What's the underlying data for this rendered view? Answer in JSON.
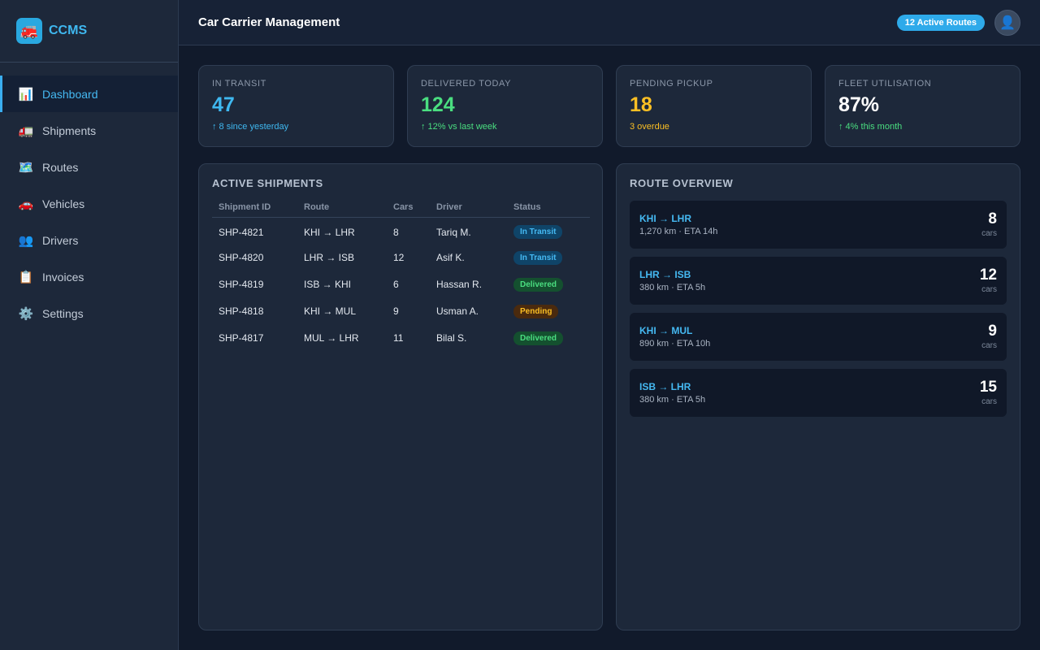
{
  "app": {
    "name": "CCMS",
    "logo_icon": "🚒"
  },
  "sidebar": {
    "items": [
      {
        "label": "Dashboard",
        "icon": "📊",
        "active": true
      },
      {
        "label": "Shipments",
        "icon": "🚛"
      },
      {
        "label": "Routes",
        "icon": "🗺️"
      },
      {
        "label": "Vehicles",
        "icon": "🚗"
      },
      {
        "label": "Drivers",
        "icon": "👥"
      },
      {
        "label": "Invoices",
        "icon": "📋"
      },
      {
        "label": "Settings",
        "icon": "⚙️"
      }
    ]
  },
  "header": {
    "title": "Car Carrier Management",
    "badge": "12 Active Routes",
    "avatar_icon": "👤"
  },
  "stats": [
    {
      "label": "IN TRANSIT",
      "value": "47",
      "sub": "↑ 8 since yesterday",
      "value_color": "#3fb8f0",
      "sub_color": "#3fb8f0"
    },
    {
      "label": "DELIVERED TODAY",
      "value": "124",
      "sub": "↑ 12% vs last week",
      "value_color": "#4ade80",
      "sub_color": "#4ade80"
    },
    {
      "label": "PENDING PICKUP",
      "value": "18",
      "sub": "3 overdue",
      "value_color": "#fbbf24",
      "sub_color": "#fbbf24"
    },
    {
      "label": "FLEET UTILISATION",
      "value": "87%",
      "sub": "↑ 4% this month",
      "value_color": "#ffffff",
      "sub_color": "#4ade80"
    }
  ],
  "shipments": {
    "title": "ACTIVE SHIPMENTS",
    "columns": [
      "Shipment ID",
      "Route",
      "Cars",
      "Driver",
      "Status"
    ],
    "rows": [
      {
        "id": "SHP-4821",
        "route": "KHI → LHR",
        "cars": "8",
        "driver": "Tariq M.",
        "status": "In Transit"
      },
      {
        "id": "SHP-4820",
        "route": "LHR → ISB",
        "cars": "12",
        "driver": "Asif K.",
        "status": "In Transit"
      },
      {
        "id": "SHP-4819",
        "route": "ISB → KHI",
        "cars": "6",
        "driver": "Hassan R.",
        "status": "Delivered"
      },
      {
        "id": "SHP-4818",
        "route": "KHI → MUL",
        "cars": "9",
        "driver": "Usman A.",
        "status": "Pending"
      },
      {
        "id": "SHP-4817",
        "route": "MUL → LHR",
        "cars": "11",
        "driver": "Bilal S.",
        "status": "Delivered"
      }
    ]
  },
  "routes": {
    "title": "ROUTE OVERVIEW",
    "items": [
      {
        "name": "KHI → LHR",
        "meta": "1,270 km · ETA 14h",
        "count": "8",
        "unit": "cars"
      },
      {
        "name": "LHR → ISB",
        "meta": "380 km · ETA 5h",
        "count": "12",
        "unit": "cars"
      },
      {
        "name": "KHI → MUL",
        "meta": "890 km · ETA 10h",
        "count": "9",
        "unit": "cars"
      },
      {
        "name": "ISB → LHR",
        "meta": "380 km · ETA 5h",
        "count": "15",
        "unit": "cars"
      }
    ]
  }
}
